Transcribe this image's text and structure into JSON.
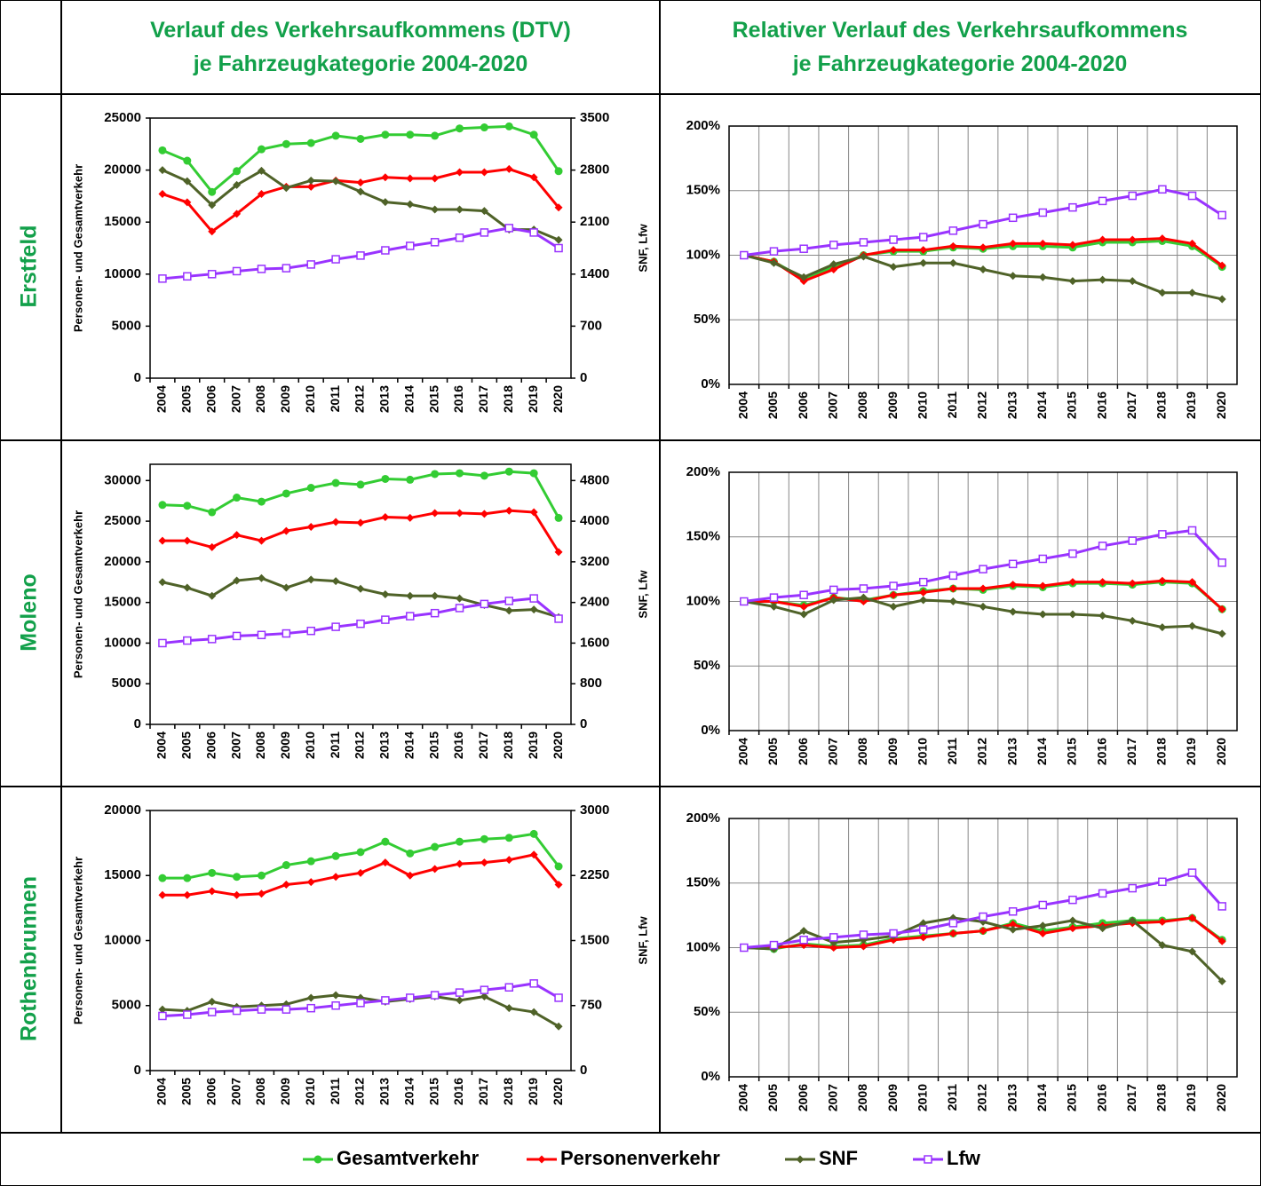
{
  "columns": [
    {
      "lines": [
        "Verlauf des Verkehrsaufkommens (DTV)",
        "je Fahrzeugkategorie 2004-2020"
      ]
    },
    {
      "lines": [
        "Relativer Verlauf des Verkehrsaufkommens",
        "je Fahrzeugkategorie 2004-2020"
      ]
    }
  ],
  "rows": [
    "Erstfeld",
    "Moleno",
    "Rothenbrunnen"
  ],
  "legend": [
    {
      "name": "Gesamtverkehr",
      "color": "#33cc33",
      "marker": "circle"
    },
    {
      "name": "Personenverkehr",
      "color": "#ff0000",
      "marker": "diamond"
    },
    {
      "name": "SNF",
      "color": "#4f6228",
      "marker": "diamond"
    },
    {
      "name": "Lfw",
      "color": "#9933ff",
      "marker": "square"
    }
  ],
  "chart_data": [
    {
      "type": "line",
      "ylabel": "Personen- und Gesamtverkehr",
      "y2label": "SNF, Lfw",
      "grid": false,
      "categories": [
        "2004",
        "2005",
        "2006",
        "2007",
        "2008",
        "2009",
        "2010",
        "2011",
        "2012",
        "2013",
        "2014",
        "2015",
        "2016",
        "2017",
        "2018",
        "2019",
        "2020"
      ],
      "ylim": [
        0,
        25000
      ],
      "yticks": [
        0,
        5000,
        10000,
        15000,
        20000,
        25000
      ],
      "y2lim": [
        0,
        3500
      ],
      "y2ticks": [
        0,
        700,
        1400,
        2100,
        2800,
        3500
      ],
      "series": [
        {
          "color": "#33cc33",
          "marker": "circle",
          "values": [
            21900,
            20900,
            17900,
            19900,
            22000,
            22500,
            22600,
            23300,
            23000,
            23400,
            23400,
            23300,
            24000,
            24100,
            24200,
            23400,
            19900
          ]
        },
        {
          "color": "#ff0000",
          "marker": "diamond",
          "values": [
            17700,
            16900,
            14100,
            15800,
            17700,
            18400,
            18400,
            19000,
            18800,
            19300,
            19200,
            19200,
            19800,
            19800,
            20100,
            19300,
            16400
          ]
        },
        {
          "color": "#4f6228",
          "marker": "diamond",
          "axis": "y2",
          "values": [
            2800,
            2650,
            2330,
            2600,
            2790,
            2560,
            2660,
            2650,
            2510,
            2370,
            2340,
            2270,
            2270,
            2250,
            2000,
            2000,
            1860
          ]
        },
        {
          "color": "#9933ff",
          "marker": "square",
          "axis": "y2",
          "values": [
            1340,
            1370,
            1400,
            1440,
            1470,
            1480,
            1530,
            1600,
            1650,
            1720,
            1780,
            1830,
            1890,
            1960,
            2020,
            1960,
            1750
          ]
        }
      ]
    },
    {
      "type": "line",
      "grid": true,
      "categories": [
        "2004",
        "2005",
        "2006",
        "2007",
        "2008",
        "2009",
        "2010",
        "2011",
        "2012",
        "2013",
        "2014",
        "2015",
        "2016",
        "2017",
        "2018",
        "2019",
        "2020"
      ],
      "ylim": [
        0,
        200
      ],
      "yticks": [
        {
          "value": 0,
          "label": "0%"
        },
        {
          "value": 50,
          "label": "50%"
        },
        {
          "value": 100,
          "label": "100%"
        },
        {
          "value": 150,
          "label": "150%"
        },
        {
          "value": 200,
          "label": "200%"
        }
      ],
      "series": [
        {
          "color": "#33cc33",
          "marker": "circle",
          "values": [
            100,
            95,
            82,
            91,
            100,
            103,
            103,
            106,
            105,
            107,
            107,
            106,
            110,
            110,
            111,
            107,
            91
          ]
        },
        {
          "color": "#ff0000",
          "marker": "diamond",
          "values": [
            100,
            95,
            80,
            89,
            100,
            104,
            104,
            107,
            106,
            109,
            109,
            108,
            112,
            112,
            113,
            109,
            92
          ]
        },
        {
          "color": "#4f6228",
          "marker": "diamond",
          "values": [
            100,
            94,
            83,
            93,
            99,
            91,
            94,
            94,
            89,
            84,
            83,
            80,
            81,
            80,
            71,
            71,
            66
          ]
        },
        {
          "color": "#9933ff",
          "marker": "square",
          "values": [
            100,
            103,
            105,
            108,
            110,
            112,
            114,
            119,
            124,
            129,
            133,
            137,
            142,
            146,
            151,
            146,
            131
          ]
        }
      ]
    },
    {
      "type": "line",
      "ylabel": "Personen- und Gesamtverkehr",
      "y2label": "SNF, Lfw",
      "grid": false,
      "categories": [
        "2004",
        "2005",
        "2006",
        "2007",
        "2008",
        "2009",
        "2010",
        "2011",
        "2012",
        "2013",
        "2014",
        "2015",
        "2016",
        "2017",
        "2018",
        "2019",
        "2020"
      ],
      "ylim": [
        0,
        32000
      ],
      "yticks": [
        0,
        5000,
        10000,
        15000,
        20000,
        25000,
        30000
      ],
      "y2lim": [
        0,
        5120
      ],
      "y2ticks": [
        0,
        800,
        1600,
        2400,
        3200,
        4000,
        4800
      ],
      "series": [
        {
          "color": "#33cc33",
          "marker": "circle",
          "values": [
            27000,
            26900,
            26100,
            27900,
            27400,
            28400,
            29100,
            29700,
            29500,
            30200,
            30100,
            30800,
            30900,
            30600,
            31100,
            30900,
            25400
          ]
        },
        {
          "color": "#ff0000",
          "marker": "diamond",
          "values": [
            22600,
            22600,
            21800,
            23300,
            22600,
            23800,
            24300,
            24900,
            24800,
            25500,
            25400,
            26000,
            26000,
            25900,
            26300,
            26100,
            21200
          ]
        },
        {
          "color": "#4f6228",
          "marker": "diamond",
          "axis": "y2",
          "values": [
            2800,
            2690,
            2530,
            2830,
            2880,
            2690,
            2850,
            2820,
            2670,
            2560,
            2530,
            2530,
            2480,
            2350,
            2240,
            2260,
            2110
          ]
        },
        {
          "color": "#9933ff",
          "marker": "square",
          "axis": "y2",
          "values": [
            1600,
            1650,
            1680,
            1740,
            1760,
            1790,
            1840,
            1920,
            1980,
            2060,
            2130,
            2190,
            2290,
            2370,
            2430,
            2480,
            2080
          ]
        }
      ]
    },
    {
      "type": "line",
      "grid": true,
      "categories": [
        "2004",
        "2005",
        "2006",
        "2007",
        "2008",
        "2009",
        "2010",
        "2011",
        "2012",
        "2013",
        "2014",
        "2015",
        "2016",
        "2017",
        "2018",
        "2019",
        "2020"
      ],
      "ylim": [
        0,
        200
      ],
      "yticks": [
        {
          "value": 0,
          "label": "0%"
        },
        {
          "value": 50,
          "label": "50%"
        },
        {
          "value": 100,
          "label": "100%"
        },
        {
          "value": 150,
          "label": "150%"
        },
        {
          "value": 200,
          "label": "200%"
        }
      ],
      "series": [
        {
          "color": "#33cc33",
          "marker": "circle",
          "values": [
            100,
            100,
            97,
            103,
            101,
            105,
            108,
            110,
            109,
            112,
            111,
            114,
            114,
            113,
            115,
            114,
            94
          ]
        },
        {
          "color": "#ff0000",
          "marker": "diamond",
          "values": [
            100,
            100,
            96,
            103,
            100,
            105,
            107,
            110,
            110,
            113,
            112,
            115,
            115,
            114,
            116,
            115,
            94
          ]
        },
        {
          "color": "#4f6228",
          "marker": "diamond",
          "values": [
            100,
            96,
            90,
            101,
            103,
            96,
            101,
            100,
            96,
            92,
            90,
            90,
            89,
            85,
            80,
            81,
            75
          ]
        },
        {
          "color": "#9933ff",
          "marker": "square",
          "values": [
            100,
            103,
            105,
            109,
            110,
            112,
            115,
            120,
            125,
            129,
            133,
            137,
            143,
            147,
            152,
            155,
            130
          ]
        }
      ]
    },
    {
      "type": "line",
      "ylabel": "Personen- und Gesamtverkehr",
      "y2label": "SNF, Lfw",
      "grid": false,
      "categories": [
        "2004",
        "2005",
        "2006",
        "2007",
        "2008",
        "2009",
        "2010",
        "2011",
        "2012",
        "2013",
        "2014",
        "2015",
        "2016",
        "2017",
        "2018",
        "2019",
        "2020"
      ],
      "ylim": [
        0,
        20000
      ],
      "yticks": [
        0,
        5000,
        10000,
        15000,
        20000
      ],
      "y2lim": [
        0,
        3000
      ],
      "y2ticks": [
        0,
        750,
        1500,
        2250,
        3000
      ],
      "series": [
        {
          "color": "#33cc33",
          "marker": "circle",
          "values": [
            14800,
            14800,
            15200,
            14900,
            15000,
            15800,
            16100,
            16500,
            16800,
            17600,
            16700,
            17200,
            17600,
            17800,
            17900,
            18200,
            15700
          ]
        },
        {
          "color": "#ff0000",
          "marker": "diamond",
          "values": [
            13500,
            13500,
            13800,
            13500,
            13600,
            14300,
            14500,
            14900,
            15200,
            16000,
            15000,
            15500,
            15900,
            16000,
            16200,
            16600,
            14300
          ]
        },
        {
          "color": "#4f6228",
          "marker": "diamond",
          "axis": "y2",
          "values": [
            705,
            690,
            795,
            735,
            750,
            765,
            840,
            870,
            840,
            795,
            825,
            855,
            810,
            855,
            720,
            675,
            510
          ]
        },
        {
          "color": "#9933ff",
          "marker": "square",
          "axis": "y2",
          "values": [
            630,
            645,
            675,
            690,
            705,
            705,
            720,
            750,
            780,
            810,
            840,
            870,
            900,
            930,
            960,
            1005,
            840
          ]
        }
      ]
    },
    {
      "type": "line",
      "grid": true,
      "categories": [
        "2004",
        "2005",
        "2006",
        "2007",
        "2008",
        "2009",
        "2010",
        "2011",
        "2012",
        "2013",
        "2014",
        "2015",
        "2016",
        "2017",
        "2018",
        "2019",
        "2020"
      ],
      "ylim": [
        0,
        200
      ],
      "yticks": [
        {
          "value": 0,
          "label": "0%"
        },
        {
          "value": 50,
          "label": "50%"
        },
        {
          "value": 100,
          "label": "100%"
        },
        {
          "value": 150,
          "label": "150%"
        },
        {
          "value": 200,
          "label": "200%"
        }
      ],
      "series": [
        {
          "color": "#33cc33",
          "marker": "circle",
          "values": [
            100,
            99,
            103,
            101,
            102,
            107,
            109,
            111,
            113,
            119,
            113,
            116,
            119,
            121,
            121,
            123,
            106
          ]
        },
        {
          "color": "#ff0000",
          "marker": "diamond",
          "values": [
            100,
            100,
            102,
            100,
            101,
            106,
            108,
            111,
            113,
            118,
            111,
            115,
            117,
            119,
            120,
            123,
            105
          ]
        },
        {
          "color": "#4f6228",
          "marker": "diamond",
          "values": [
            100,
            99,
            113,
            104,
            106,
            109,
            119,
            123,
            120,
            114,
            117,
            121,
            115,
            121,
            102,
            97,
            74
          ]
        },
        {
          "color": "#9933ff",
          "marker": "square",
          "values": [
            100,
            102,
            106,
            108,
            110,
            111,
            114,
            119,
            124,
            128,
            133,
            137,
            142,
            146,
            151,
            158,
            132
          ]
        }
      ]
    }
  ]
}
